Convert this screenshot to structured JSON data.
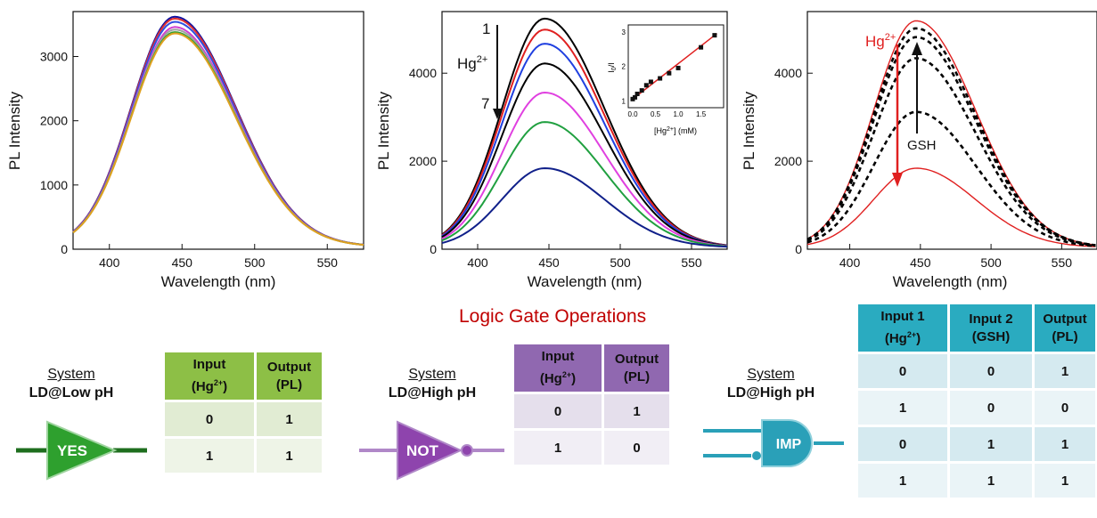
{
  "chart_data": [
    {
      "type": "line",
      "xlabel": "Wavelength (nm)",
      "ylabel": "PL Intensity",
      "xlim": [
        375,
        575
      ],
      "ylim": [
        0,
        3700
      ],
      "xticks": [
        400,
        450,
        500,
        550
      ],
      "yticks": [
        0,
        1000,
        2000,
        3000
      ],
      "peak_x": 445,
      "series": [
        {
          "color": "#1010a0",
          "peak": 3580
        },
        {
          "color": "#e03030",
          "peak": 3550
        },
        {
          "color": "#3050e0",
          "peak": 3500
        },
        {
          "color": "#d040d0",
          "peak": 3420
        },
        {
          "color": "#a0a0a0",
          "peak": 3380
        },
        {
          "color": "#30a030",
          "peak": 3340
        },
        {
          "color": "#e0a020",
          "peak": 3320
        }
      ]
    },
    {
      "type": "line",
      "xlabel": "Wavelength (nm)",
      "ylabel": "PL Intensity",
      "xlim": [
        375,
        575
      ],
      "ylim": [
        0,
        5400
      ],
      "xticks": [
        400,
        450,
        500,
        550
      ],
      "yticks": [
        0,
        2000,
        4000
      ],
      "peak_x": 447,
      "annotations": {
        "start": "1",
        "end": "7",
        "analyte": "Hg",
        "charge": "2+"
      },
      "series": [
        {
          "color": "#000000",
          "peak": 5200
        },
        {
          "color": "#e02020",
          "peak": 4950
        },
        {
          "color": "#2040e0",
          "peak": 4630
        },
        {
          "color": "#000000",
          "peak": 4180
        },
        {
          "color": "#e040e0",
          "peak": 3520
        },
        {
          "color": "#20a040",
          "peak": 2850
        },
        {
          "color": "#10208a",
          "peak": 1800
        }
      ],
      "inset": {
        "type": "scatter",
        "xlabel_pre": "[Hg",
        "xlabel_sup": "2+",
        "xlabel_post": "] (mM)",
        "ylabel_pre": "I",
        "ylabel_sub": "0",
        "ylabel_post": "/I",
        "xlim": [
          0,
          1.9
        ],
        "ylim": [
          0.8,
          3.2
        ],
        "xticks": [
          "0.0",
          "0.5",
          "1.0",
          "1.5"
        ],
        "yticks": [
          "1",
          "2",
          "3"
        ],
        "x": [
          0.0,
          0.05,
          0.1,
          0.2,
          0.3,
          0.4,
          0.6,
          0.8,
          1.0,
          1.5,
          1.8
        ],
        "y": [
          1.05,
          1.1,
          1.2,
          1.3,
          1.45,
          1.55,
          1.65,
          1.8,
          1.95,
          2.55,
          2.9
        ],
        "fit": [
          [
            0,
            1.05
          ],
          [
            1.85,
            2.95
          ]
        ]
      }
    },
    {
      "type": "line",
      "xlabel": "Wavelength (nm)",
      "ylabel": "PL Intensity",
      "xlim": [
        370,
        575
      ],
      "ylim": [
        0,
        5400
      ],
      "xticks": [
        400,
        450,
        500,
        550
      ],
      "yticks": [
        0,
        2000,
        4000
      ],
      "peak_x": 447,
      "annotations": {
        "analyte": "Hg",
        "charge": "2+",
        "restore": "GSH"
      },
      "series": [
        {
          "style": "solid",
          "color": "#e02020",
          "peak": 5150
        },
        {
          "style": "solid",
          "color": "#e02020",
          "peak": 1800
        },
        {
          "style": "dashed",
          "color": "#000000",
          "peak": 4980
        },
        {
          "style": "dashed",
          "color": "#000000",
          "peak": 4780
        },
        {
          "style": "dashed",
          "color": "#000000",
          "peak": 4300
        },
        {
          "style": "dashed",
          "color": "#000000",
          "peak": 3080
        }
      ]
    }
  ],
  "logic": {
    "title": "Logic Gate Operations",
    "system_label": "System",
    "left": {
      "system": "LD@Low pH",
      "gate": "YES",
      "headers": [
        [
          "Input",
          "(Hg",
          "2+",
          ")"
        ],
        [
          "Output",
          "(PL)"
        ]
      ],
      "rows": [
        [
          "0",
          "1"
        ],
        [
          "1",
          "1"
        ]
      ],
      "colors": {
        "header": "#8dbf46",
        "row": "#e1ecd3",
        "gate_fill": "#2ea02e",
        "gate_line": "#1e6e1e"
      }
    },
    "middle": {
      "system": "LD@High pH",
      "gate": "NOT",
      "headers": [
        [
          "Input",
          "(Hg",
          "2+",
          ")"
        ],
        [
          "Output",
          "(PL)"
        ]
      ],
      "rows": [
        [
          "0",
          "1"
        ],
        [
          "1",
          "0"
        ]
      ],
      "colors": {
        "header": "#9068b0",
        "row": "#e5dfec",
        "gate_fill": "#8e44ad",
        "gate_line": "#b088c8"
      }
    },
    "right": {
      "system": "LD@High pH",
      "gate": "IMP",
      "headers": [
        [
          "Input 1",
          "(Hg",
          "2+",
          ")"
        ],
        [
          "Input 2",
          "(GSH)"
        ],
        [
          "Output",
          "(PL)"
        ]
      ],
      "rows": [
        [
          "0",
          "0",
          "1"
        ],
        [
          "1",
          "0",
          "0"
        ],
        [
          "0",
          "1",
          "1"
        ],
        [
          "1",
          "1",
          "1"
        ]
      ],
      "colors": {
        "header": "#2aabc0",
        "row": "#d5eaf0",
        "gate_fill": "#2aa0b8",
        "gate_line": "#2aa0b8"
      }
    }
  }
}
